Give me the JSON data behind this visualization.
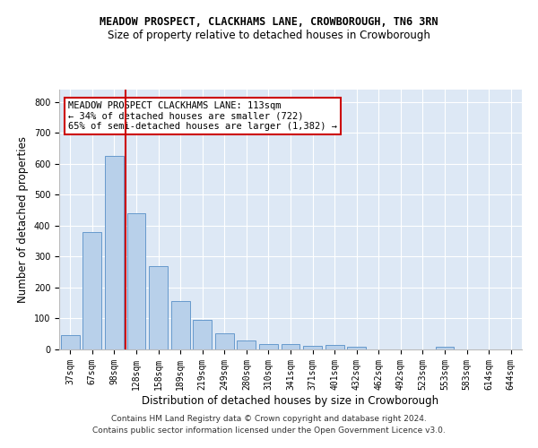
{
  "title": "MEADOW PROSPECT, CLACKHAMS LANE, CROWBOROUGH, TN6 3RN",
  "subtitle": "Size of property relative to detached houses in Crowborough",
  "xlabel": "Distribution of detached houses by size in Crowborough",
  "ylabel": "Number of detached properties",
  "categories": [
    "37sqm",
    "67sqm",
    "98sqm",
    "128sqm",
    "158sqm",
    "189sqm",
    "219sqm",
    "249sqm",
    "280sqm",
    "310sqm",
    "341sqm",
    "371sqm",
    "401sqm",
    "432sqm",
    "462sqm",
    "492sqm",
    "523sqm",
    "553sqm",
    "583sqm",
    "614sqm",
    "644sqm"
  ],
  "values": [
    45,
    380,
    625,
    440,
    270,
    155,
    97,
    52,
    30,
    17,
    17,
    11,
    15,
    8,
    0,
    0,
    0,
    8,
    0,
    0,
    0
  ],
  "bar_color": "#b8d0ea",
  "bar_edge_color": "#6699cc",
  "vline_color": "#cc0000",
  "vline_x_index": 2.5,
  "annotation_text_line1": "MEADOW PROSPECT CLACKHAMS LANE: 113sqm",
  "annotation_text_line2": "← 34% of detached houses are smaller (722)",
  "annotation_text_line3": "65% of semi-detached houses are larger (1,382) →",
  "annotation_box_color": "#cc0000",
  "bg_color": "#dde8f5",
  "footer_line1": "Contains HM Land Registry data © Crown copyright and database right 2024.",
  "footer_line2": "Contains public sector information licensed under the Open Government Licence v3.0.",
  "ylim": [
    0,
    840
  ],
  "yticks": [
    0,
    100,
    200,
    300,
    400,
    500,
    600,
    700,
    800
  ],
  "title_fontsize": 8.5,
  "subtitle_fontsize": 8.5,
  "tick_fontsize": 7,
  "label_fontsize": 8.5,
  "footer_fontsize": 6.5
}
